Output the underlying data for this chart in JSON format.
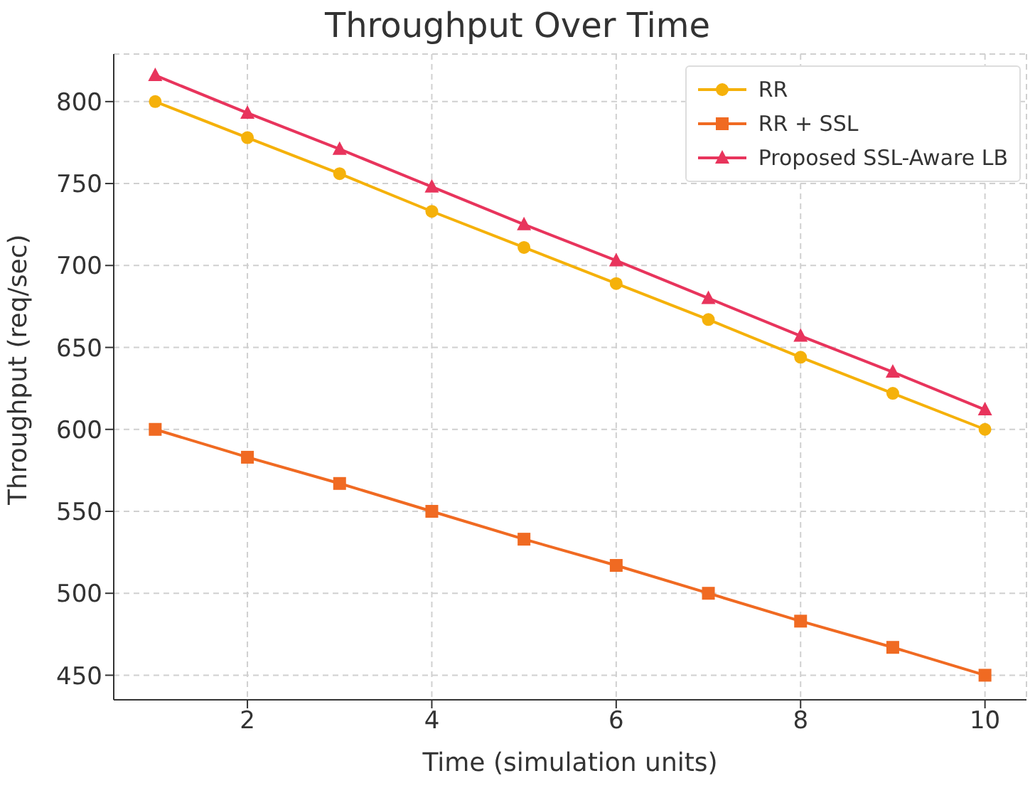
{
  "chart_data": {
    "type": "line",
    "title": "Throughput Over Time",
    "xlabel": "Time (simulation units)",
    "ylabel": "Throughput (req/sec)",
    "x": [
      1,
      2,
      3,
      4,
      5,
      6,
      7,
      8,
      9,
      10
    ],
    "series": [
      {
        "name": "RR",
        "color": "#f5b10a",
        "marker": "circle",
        "values": [
          800,
          778,
          756,
          733,
          711,
          689,
          667,
          644,
          622,
          600
        ]
      },
      {
        "name": "RR + SSL",
        "color": "#f06a22",
        "marker": "square",
        "values": [
          600,
          583,
          567,
          550,
          533,
          517,
          500,
          483,
          467,
          450
        ]
      },
      {
        "name": "Proposed SSL-Aware LB",
        "color": "#e8345c",
        "marker": "triangle",
        "values": [
          816,
          793,
          771,
          748,
          725,
          703,
          680,
          657,
          635,
          612
        ]
      }
    ],
    "xlim": [
      0.55,
      10.45
    ],
    "ylim": [
      435,
      829
    ],
    "xticks": [
      2,
      4,
      6,
      8,
      10
    ],
    "yticks": [
      450,
      500,
      550,
      600,
      650,
      700,
      750,
      800
    ],
    "grid": true,
    "legend": "top right",
    "line_style": "solid"
  }
}
